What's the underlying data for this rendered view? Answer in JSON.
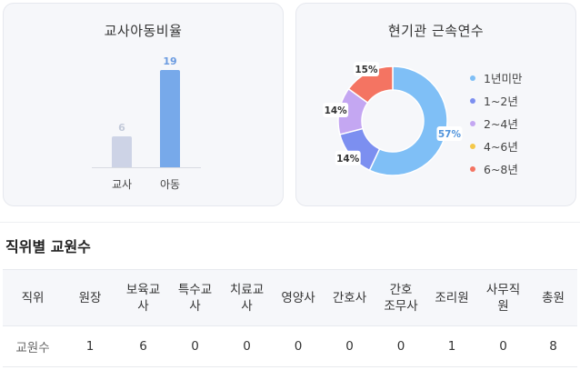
{
  "ratio_card": {
    "title": "교사아동비율"
  },
  "tenure_card": {
    "title": "현기관 근속연수"
  },
  "chart_data": [
    {
      "type": "bar",
      "title": "교사아동비율",
      "categories": [
        "교사",
        "아동"
      ],
      "values": [
        6,
        19
      ],
      "colors": [
        "#cdd3e6",
        "#77a9ea"
      ],
      "label_colors": [
        "#c3cad9",
        "#6b9be0"
      ],
      "ylim": [
        0,
        19
      ]
    },
    {
      "type": "pie",
      "title": "현기관 근속연수",
      "categories": [
        "1년미만",
        "1~2년",
        "2~4년",
        "4~6년",
        "6~8년"
      ],
      "values": [
        57,
        14,
        14,
        0,
        15
      ],
      "labels": [
        "57%",
        "14%",
        "14%",
        "",
        "15%"
      ],
      "colors": [
        "#7fbff6",
        "#7c8ff0",
        "#c4a7f2",
        "#f4c84a",
        "#f47462"
      ]
    }
  ],
  "legend": [
    {
      "label": "1년미만",
      "color": "#7fbff6"
    },
    {
      "label": "1~2년",
      "color": "#7c8ff0"
    },
    {
      "label": "2~4년",
      "color": "#c4a7f2"
    },
    {
      "label": "4~6년",
      "color": "#f4c84a"
    },
    {
      "label": "6~8년",
      "color": "#f47462"
    }
  ],
  "staff_section": {
    "title": "직위별 교원수",
    "headers": [
      "직위",
      "원장",
      "보육교\n사",
      "특수교\n사",
      "치료교\n사",
      "영양사",
      "간호사",
      "간호\n조무사",
      "조리원",
      "사무직\n원",
      "총원"
    ],
    "row_label": "교원수",
    "values": [
      "1",
      "6",
      "0",
      "0",
      "0",
      "0",
      "0",
      "1",
      "0",
      "8"
    ]
  }
}
